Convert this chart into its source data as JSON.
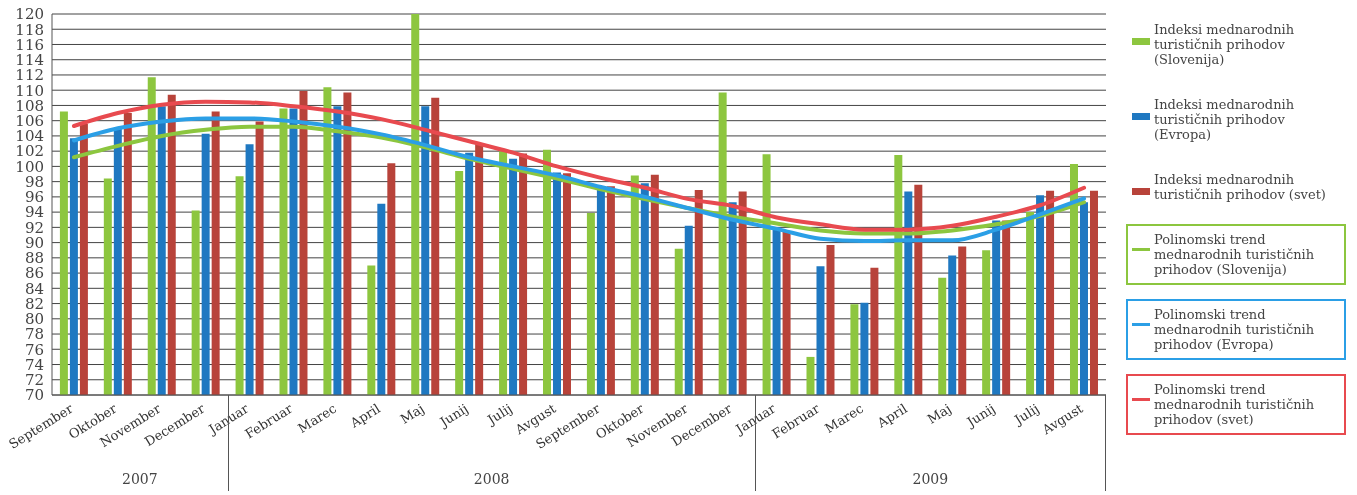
{
  "chart_data": {
    "type": "bar",
    "categories": [
      "September",
      "Oktober",
      "November",
      "December",
      "Januar",
      "Februar",
      "Marec",
      "April",
      "Maj",
      "Junij",
      "Julij",
      "Avgust",
      "September",
      "Oktober",
      "November",
      "December",
      "Januar",
      "Februar",
      "Marec",
      "April",
      "Maj",
      "Junij",
      "Julij",
      "Avgust"
    ],
    "series": [
      {
        "name": "Indeksi mednarodnih turističnih prihodov (Slovenija)",
        "color": "#8dc63f",
        "values": [
          107.2,
          98.4,
          111.7,
          94.2,
          98.7,
          107.6,
          110.4,
          87.0,
          120,
          99.4,
          102,
          102.2,
          93.9,
          98.8,
          89.2,
          109.7,
          101.6,
          75.0,
          81.9,
          101.5,
          85.4,
          89.0,
          94.0,
          100.3
        ]
      },
      {
        "name": "Indeksi mednarodnih turističnih prihodov (Evropa)",
        "color": "#1f78c1",
        "values": [
          103.7,
          105.0,
          107.9,
          104.3,
          102.9,
          107.6,
          107.9,
          95.1,
          107.9,
          101.8,
          101.0,
          99.2,
          96.9,
          97.8,
          92.2,
          95.3,
          92.0,
          86.9,
          82.1,
          96.7,
          88.3,
          92.9,
          96.2,
          95.3
        ]
      },
      {
        "name": "Indeksi mednarodnih turističnih prihodov (svet)",
        "color": "#b8433a",
        "values": [
          105.6,
          107.0,
          109.4,
          107.2,
          105.9,
          109.9,
          109.7,
          100.4,
          109.0,
          102.9,
          101.7,
          99.1,
          97.4,
          98.9,
          96.9,
          96.7,
          91.4,
          89.7,
          86.7,
          97.6,
          89.5,
          92.9,
          96.8,
          96.8
        ]
      },
      {
        "name": "Polinomski trend mednarodnih turističnih prihodov (Slovenija)",
        "type": "line",
        "color": "#8cc63f",
        "values": [
          101.2,
          102.7,
          104.0,
          104.8,
          105.2,
          105.2,
          104.6,
          103.8,
          102.5,
          101.0,
          99.7,
          98.4,
          97.0,
          95.7,
          94.5,
          93.4,
          92.5,
          91.6,
          91.2,
          91.2,
          91.6,
          92.4,
          93.5,
          95.3
        ]
      },
      {
        "name": "Polinomski trend mednarodnih turističnih prihodov (Evropa)",
        "type": "line",
        "color": "#2b9fe6",
        "values": [
          103.4,
          105.0,
          105.9,
          106.3,
          106.3,
          105.9,
          105.2,
          104.2,
          102.8,
          101.2,
          100.0,
          98.8,
          97.3,
          96.0,
          94.5,
          93.0,
          91.8,
          90.5,
          90.2,
          90.3,
          90.3,
          91.7,
          93.7,
          95.8
        ]
      },
      {
        "name": "Polinomski trend mednarodnih turističnih prihodov (svet)",
        "type": "line",
        "color": "#e84a4f",
        "values": [
          105.3,
          107.0,
          108.1,
          108.5,
          108.4,
          107.9,
          107.2,
          106.2,
          104.8,
          103.3,
          101.8,
          100.0,
          98.5,
          97.2,
          95.7,
          94.8,
          93.3,
          92.4,
          91.7,
          91.7,
          92.2,
          93.4,
          94.9,
          97.2
        ]
      }
    ],
    "ylim": [
      70,
      120
    ],
    "yticks": [
      70,
      72,
      74,
      76,
      78,
      80,
      82,
      84,
      86,
      88,
      90,
      92,
      94,
      96,
      98,
      100,
      102,
      104,
      106,
      108,
      110,
      112,
      114,
      116,
      118,
      120
    ],
    "grid": "y",
    "legend": "right",
    "marker": "none",
    "annotations": [
      "2007",
      "2008",
      "2009"
    ]
  }
}
